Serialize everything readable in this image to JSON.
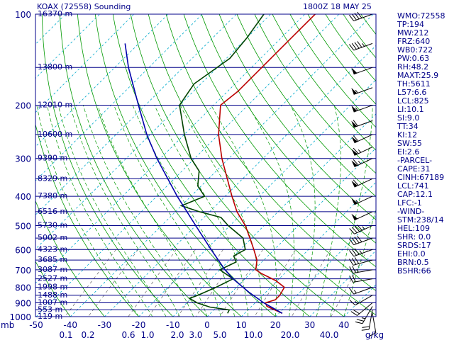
{
  "header": {
    "station": "KOAX (72558) Sounding",
    "time": "1800Z 18 MAY 25"
  },
  "indices": [
    "WMO:72558",
    "TP:194",
    "MW:212",
    "FRZ:640",
    "WB0:722",
    "PW:0.63",
    "RH:48.2",
    "MAXT:25.9",
    "TH:5611",
    "L57:6.6",
    "LCL:825",
    "LI:10.1",
    "SI:9.0",
    "TT:34",
    "KI:12",
    "SW:55",
    "EI:2.6",
    "-PARCEL-",
    "CAPE:31",
    "CINH:67189",
    "LCL:741",
    "CAP:12.1",
    "LFC:-1",
    "-WIND-",
    "STM:238/14",
    "HEL:109",
    "SHR: 0.0",
    "SRDS:17",
    "EHI:0.0",
    "BRN:0.5",
    "BSHR:66"
  ],
  "colors": {
    "isobar": "#000088",
    "isotherm": "#00aacc",
    "dry_adiabat": "#009900",
    "moist_adiabat": "#009900",
    "mixing_ratio": "#666666",
    "temperature": "#bb0000",
    "dewpoint": "#004400",
    "parcel": "#0000aa",
    "wind_barbs": "#000000",
    "label": "#000088"
  },
  "chart_data": {
    "type": "skew-t",
    "title": "KOAX (72558) Sounding",
    "x_tick_labels": [
      "-50",
      "-40",
      "-30",
      "-20",
      "-10",
      "0",
      "10",
      "20",
      "30",
      "40"
    ],
    "x_unit": "C",
    "y_unit": "mb",
    "pressure_ticks": [
      "100",
      "200",
      "300",
      "400",
      "500",
      "600",
      "700",
      "800",
      "900",
      "1000"
    ],
    "height_labels": [
      {
        "p": 100,
        "label": "16370 m"
      },
      {
        "p": 150,
        "label": "13800 m"
      },
      {
        "p": 200,
        "label": "12010 m"
      },
      {
        "p": 250,
        "label": "10600 m"
      },
      {
        "p": 300,
        "label": "9390 m"
      },
      {
        "p": 350,
        "label": "8329 m"
      },
      {
        "p": 400,
        "label": "7380 m"
      },
      {
        "p": 450,
        "label": "6516 m"
      },
      {
        "p": 500,
        "label": "5730 m"
      },
      {
        "p": 550,
        "label": "5002 m"
      },
      {
        "p": 600,
        "label": "4323 m"
      },
      {
        "p": 650,
        "label": "3685 m"
      },
      {
        "p": 700,
        "label": "3087 m"
      },
      {
        "p": 750,
        "label": "2527 m"
      },
      {
        "p": 800,
        "label": "1998 m"
      },
      {
        "p": 850,
        "label": "1488 m"
      },
      {
        "p": 900,
        "label": "1007 m"
      },
      {
        "p": 950,
        "label": "553 m"
      },
      {
        "p": 1000,
        "label": "119 m"
      }
    ],
    "mixing_ratio_labels": [
      "0.1",
      "0.2",
      "0.6",
      "1.0",
      "2.0",
      "3.0",
      "5.0",
      "10.0",
      "20.0",
      "40.0",
      "g/kg"
    ],
    "series": [
      {
        "name": "Temperature",
        "points": [
          {
            "p": 975,
            "t": 21.0
          },
          {
            "p": 950,
            "t": 17.8
          },
          {
            "p": 925,
            "t": 14.5
          },
          {
            "p": 900,
            "t": 13.0
          },
          {
            "p": 880,
            "t": 15.0
          },
          {
            "p": 850,
            "t": 15.0
          },
          {
            "p": 800,
            "t": 14.0
          },
          {
            "p": 760,
            "t": 9.5
          },
          {
            "p": 720,
            "t": 3.2
          },
          {
            "p": 700,
            "t": 0.5
          },
          {
            "p": 650,
            "t": -2.0
          },
          {
            "p": 600,
            "t": -6.0
          },
          {
            "p": 550,
            "t": -10.5
          },
          {
            "p": 500,
            "t": -15.5
          },
          {
            "p": 450,
            "t": -22.0
          },
          {
            "p": 400,
            "t": -28.0
          },
          {
            "p": 350,
            "t": -34.5
          },
          {
            "p": 300,
            "t": -42.0
          },
          {
            "p": 250,
            "t": -50.0
          },
          {
            "p": 200,
            "t": -58.0
          },
          {
            "p": 180,
            "t": -57.0
          },
          {
            "p": 150,
            "t": -57.0
          },
          {
            "p": 120,
            "t": -57.0
          },
          {
            "p": 100,
            "t": -57.0
          }
        ]
      },
      {
        "name": "Dewpoint",
        "points": [
          {
            "p": 975,
            "t": 5.0
          },
          {
            "p": 950,
            "t": 4.5
          },
          {
            "p": 930,
            "t": -2.0
          },
          {
            "p": 900,
            "t": -7.0
          },
          {
            "p": 870,
            "t": -10.5
          },
          {
            "p": 850,
            "t": -9.0
          },
          {
            "p": 800,
            "t": -6.0
          },
          {
            "p": 750,
            "t": -3.5
          },
          {
            "p": 700,
            "t": -10.0
          },
          {
            "p": 660,
            "t": -7.5
          },
          {
            "p": 630,
            "t": -10.0
          },
          {
            "p": 600,
            "t": -8.5
          },
          {
            "p": 550,
            "t": -12.5
          },
          {
            "p": 500,
            "t": -20.5
          },
          {
            "p": 470,
            "t": -25.0
          },
          {
            "p": 450,
            "t": -33.0
          },
          {
            "p": 430,
            "t": -40.0
          },
          {
            "p": 400,
            "t": -36.0
          },
          {
            "p": 370,
            "t": -41.0
          },
          {
            "p": 330,
            "t": -45.0
          },
          {
            "p": 300,
            "t": -51.0
          },
          {
            "p": 250,
            "t": -60.0
          },
          {
            "p": 200,
            "t": -70.0
          },
          {
            "p": 170,
            "t": -72.0
          },
          {
            "p": 140,
            "t": -69.0
          },
          {
            "p": 120,
            "t": -70.0
          },
          {
            "p": 100,
            "t": -72.0
          }
        ]
      },
      {
        "name": "Parcel",
        "points": [
          {
            "p": 975,
            "t": 21.0
          },
          {
            "p": 900,
            "t": 12.5
          },
          {
            "p": 830,
            "t": 5.0
          },
          {
            "p": 750,
            "t": -3.5
          },
          {
            "p": 700,
            "t": -8.5
          },
          {
            "p": 600,
            "t": -18.5
          },
          {
            "p": 500,
            "t": -30.0
          },
          {
            "p": 400,
            "t": -44.0
          },
          {
            "p": 300,
            "t": -61.0
          },
          {
            "p": 250,
            "t": -71.0
          },
          {
            "p": 200,
            "t": -82.0
          },
          {
            "p": 150,
            "t": -96.0
          },
          {
            "p": 125,
            "t": -104.0
          }
        ]
      }
    ],
    "wind_barbs": [
      {
        "p": 975,
        "dir": 170,
        "spd": 10
      },
      {
        "p": 950,
        "dir": 190,
        "spd": 20
      },
      {
        "p": 925,
        "dir": 210,
        "spd": 25
      },
      {
        "p": 900,
        "dir": 230,
        "spd": 20
      },
      {
        "p": 850,
        "dir": 240,
        "spd": 15
      },
      {
        "p": 800,
        "dir": 250,
        "spd": 15
      },
      {
        "p": 750,
        "dir": 260,
        "spd": 20
      },
      {
        "p": 700,
        "dir": 260,
        "spd": 25
      },
      {
        "p": 650,
        "dir": 255,
        "spd": 30
      },
      {
        "p": 600,
        "dir": 250,
        "spd": 35
      },
      {
        "p": 550,
        "dir": 250,
        "spd": 40
      },
      {
        "p": 500,
        "dir": 245,
        "spd": 45
      },
      {
        "p": 450,
        "dir": 245,
        "spd": 50
      },
      {
        "p": 400,
        "dir": 245,
        "spd": 55
      },
      {
        "p": 350,
        "dir": 245,
        "spd": 60
      },
      {
        "p": 300,
        "dir": 245,
        "spd": 65
      },
      {
        "p": 275,
        "dir": 245,
        "spd": 65
      },
      {
        "p": 250,
        "dir": 245,
        "spd": 60
      },
      {
        "p": 225,
        "dir": 250,
        "spd": 60
      },
      {
        "p": 200,
        "dir": 250,
        "spd": 55
      },
      {
        "p": 175,
        "dir": 250,
        "spd": 55
      },
      {
        "p": 150,
        "dir": 250,
        "spd": 50
      },
      {
        "p": 125,
        "dir": 250,
        "spd": 45
      },
      {
        "p": 100,
        "dir": 250,
        "spd": 40
      }
    ]
  }
}
